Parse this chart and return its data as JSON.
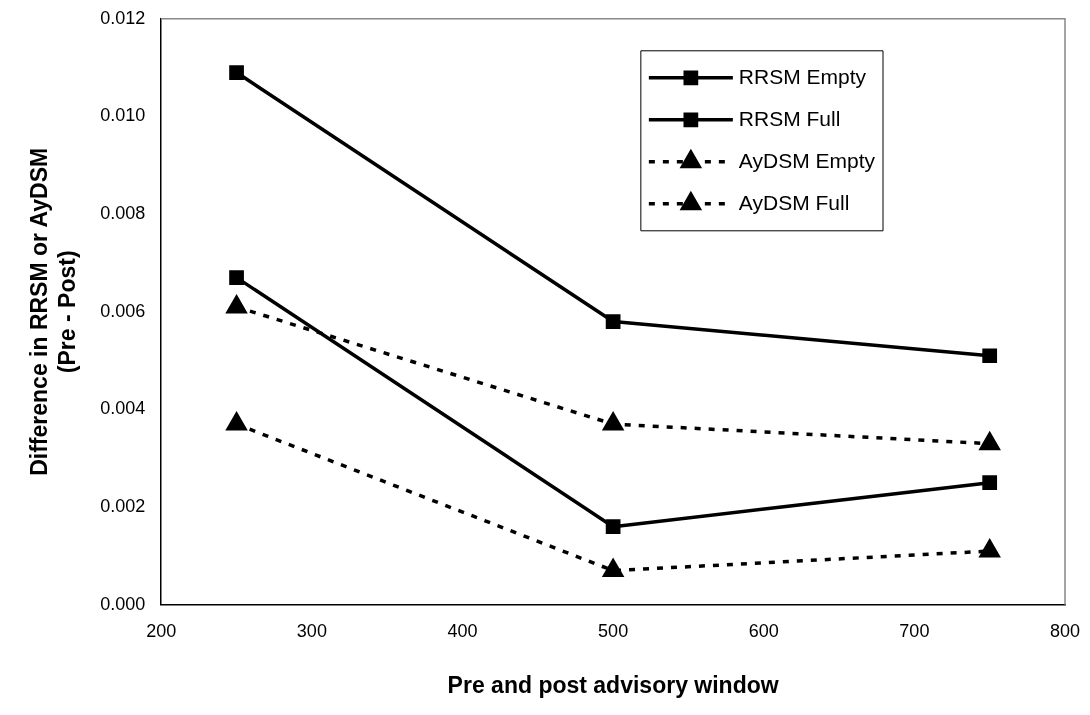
{
  "chart_data": {
    "type": "line",
    "xlabel": "Pre and post advisory window",
    "ylabel": "Difference in RRSM or AyDSM\n(Pre - Post)",
    "x": [
      250,
      500,
      750
    ],
    "series": [
      {
        "name": "RRSM Empty",
        "color": "#000000",
        "marker": "square",
        "line_style": "solid",
        "values": [
          0.0109,
          0.0058,
          0.0051
        ]
      },
      {
        "name": "RRSM Full",
        "color": "#000000",
        "marker": "square",
        "line_style": "solid",
        "values": [
          0.0067,
          0.0016,
          0.0025
        ]
      },
      {
        "name": "AyDSM Empty",
        "color": "#000000",
        "marker": "triangle",
        "line_style": "dashed",
        "values": [
          0.0061,
          0.0037,
          0.0033
        ]
      },
      {
        "name": "AyDSM Full",
        "color": "#000000",
        "marker": "triangle",
        "line_style": "dashed",
        "values": [
          0.0037,
          0.0007,
          0.0011
        ]
      }
    ],
    "xlim": [
      200,
      800
    ],
    "xticks": [
      200,
      300,
      400,
      500,
      600,
      700,
      800
    ],
    "ylim": [
      0,
      0.012
    ],
    "yticks": [
      {
        "value": 0,
        "label": "0.000"
      },
      {
        "value": 0.002,
        "label": "0.002"
      },
      {
        "value": 0.004,
        "label": "0.004"
      },
      {
        "value": 0.006,
        "label": "0.006"
      },
      {
        "value": 0.008,
        "label": "0.008"
      },
      {
        "value": 0.01,
        "label": "0.010"
      },
      {
        "value": 0.012,
        "label": "0.012"
      }
    ],
    "grid": false,
    "legend": "top right"
  }
}
